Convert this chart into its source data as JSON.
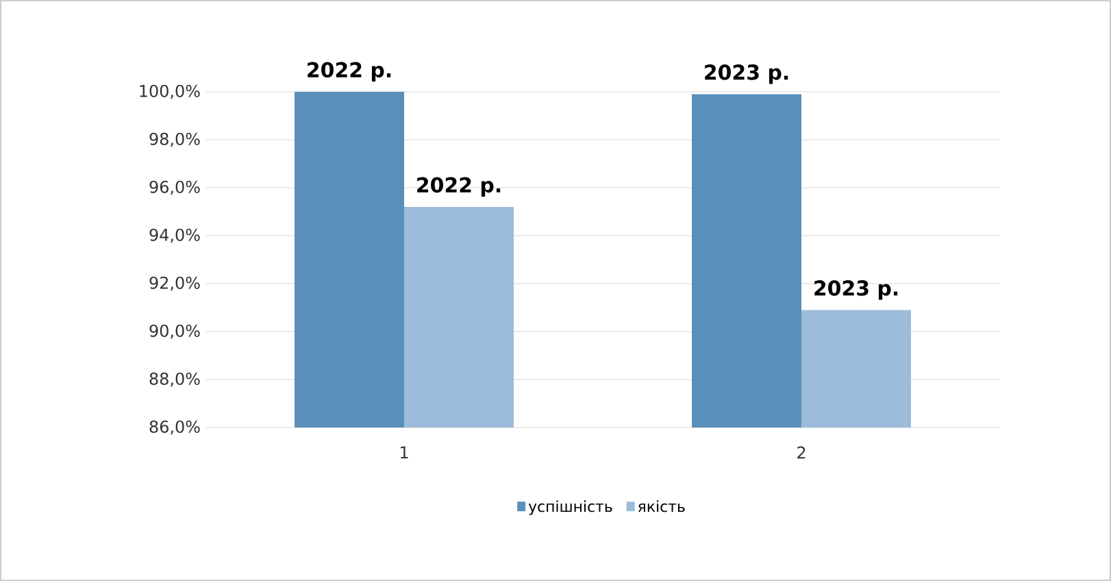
{
  "chart_data": {
    "type": "bar",
    "categories": [
      "1",
      "2"
    ],
    "series": [
      {
        "name": "успішність",
        "color": "#5a8fba",
        "values": [
          100.0,
          99.9
        ]
      },
      {
        "name": "якість",
        "color": "#9dbcdc",
        "values": [
          95.2,
          90.9
        ]
      }
    ],
    "annotations": [
      {
        "text": "2022 р.",
        "x": "1",
        "y": 100.0
      },
      {
        "text": "2022 р.",
        "x": "1",
        "y": 95.2
      },
      {
        "text": "2023 р.",
        "x": "2",
        "y": 99.9
      },
      {
        "text": "2023 р.",
        "x": "2",
        "y": 90.9
      }
    ],
    "ylim": [
      86,
      100
    ],
    "yticks": [
      {
        "value": 86,
        "label": "86,0%"
      },
      {
        "value": 88,
        "label": "88,0%"
      },
      {
        "value": 90,
        "label": "90,0%"
      },
      {
        "value": 92,
        "label": "92,0%"
      },
      {
        "value": 94,
        "label": "94,0%"
      },
      {
        "value": 96,
        "label": "96,0%"
      },
      {
        "value": 98,
        "label": "98,0%"
      },
      {
        "value": 100,
        "label": "100,0%"
      }
    ],
    "grid": "y",
    "legend": "bottom"
  }
}
